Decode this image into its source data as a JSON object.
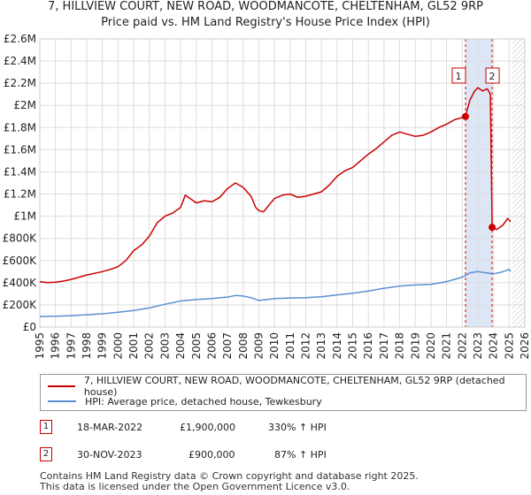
{
  "header": {
    "line1": "7, HILLVIEW COURT, NEW ROAD, WOODMANCOTE, CHELTENHAM, GL52 9RP",
    "line2": "Price paid vs. HM Land Registry's House Price Index (HPI)"
  },
  "chart_data": {
    "type": "line",
    "ylim": [
      0,
      2600000
    ],
    "xlim": [
      1995,
      2026
    ],
    "yticks": [
      {
        "value": 0,
        "label": "£0"
      },
      {
        "value": 200000,
        "label": "£200K"
      },
      {
        "value": 400000,
        "label": "£400K"
      },
      {
        "value": 600000,
        "label": "£600K"
      },
      {
        "value": 800000,
        "label": "£800K"
      },
      {
        "value": 1000000,
        "label": "£1M"
      },
      {
        "value": 1200000,
        "label": "£1.2M"
      },
      {
        "value": 1400000,
        "label": "£1.4M"
      },
      {
        "value": 1600000,
        "label": "£1.6M"
      },
      {
        "value": 1800000,
        "label": "£1.8M"
      },
      {
        "value": 2000000,
        "label": "£2M"
      },
      {
        "value": 2200000,
        "label": "£2.2M"
      },
      {
        "value": 2400000,
        "label": "£2.4M"
      },
      {
        "value": 2600000,
        "label": "£2.6M"
      }
    ],
    "xticks": [
      "1995",
      "1996",
      "1997",
      "1998",
      "1999",
      "2000",
      "2001",
      "2002",
      "2003",
      "2004",
      "2005",
      "2006",
      "2007",
      "2008",
      "2009",
      "2010",
      "2011",
      "2012",
      "2013",
      "2014",
      "2015",
      "2016",
      "2017",
      "2018",
      "2019",
      "2020",
      "2021",
      "2022",
      "2023",
      "2024",
      "2025",
      "2026"
    ],
    "series": [
      {
        "name": "7, HILLVIEW COURT, NEW ROAD, WOODMANCOTE, CHELTENHAM, GL52 9RP (detached house)",
        "color": "#cc0000",
        "points": [
          [
            1995.0,
            410000
          ],
          [
            1995.5,
            400000
          ],
          [
            1996.0,
            405000
          ],
          [
            1996.5,
            415000
          ],
          [
            1997.0,
            430000
          ],
          [
            1997.5,
            450000
          ],
          [
            1998.0,
            470000
          ],
          [
            1998.5,
            485000
          ],
          [
            1999.0,
            500000
          ],
          [
            1999.5,
            520000
          ],
          [
            2000.0,
            545000
          ],
          [
            2000.5,
            600000
          ],
          [
            2001.0,
            690000
          ],
          [
            2001.5,
            740000
          ],
          [
            2002.0,
            820000
          ],
          [
            2002.5,
            940000
          ],
          [
            2003.0,
            1000000
          ],
          [
            2003.5,
            1030000
          ],
          [
            2004.0,
            1080000
          ],
          [
            2004.3,
            1190000
          ],
          [
            2004.7,
            1150000
          ],
          [
            2005.0,
            1120000
          ],
          [
            2005.5,
            1140000
          ],
          [
            2006.0,
            1130000
          ],
          [
            2006.5,
            1170000
          ],
          [
            2007.0,
            1250000
          ],
          [
            2007.5,
            1300000
          ],
          [
            2008.0,
            1260000
          ],
          [
            2008.5,
            1180000
          ],
          [
            2008.8,
            1080000
          ],
          [
            2009.0,
            1050000
          ],
          [
            2009.3,
            1040000
          ],
          [
            2009.7,
            1110000
          ],
          [
            2010.0,
            1160000
          ],
          [
            2010.5,
            1190000
          ],
          [
            2011.0,
            1200000
          ],
          [
            2011.5,
            1170000
          ],
          [
            2012.0,
            1180000
          ],
          [
            2012.5,
            1200000
          ],
          [
            2013.0,
            1220000
          ],
          [
            2013.5,
            1280000
          ],
          [
            2014.0,
            1360000
          ],
          [
            2014.5,
            1410000
          ],
          [
            2015.0,
            1440000
          ],
          [
            2015.5,
            1500000
          ],
          [
            2016.0,
            1560000
          ],
          [
            2016.5,
            1610000
          ],
          [
            2017.0,
            1670000
          ],
          [
            2017.5,
            1730000
          ],
          [
            2018.0,
            1760000
          ],
          [
            2018.5,
            1740000
          ],
          [
            2019.0,
            1720000
          ],
          [
            2019.5,
            1730000
          ],
          [
            2020.0,
            1760000
          ],
          [
            2020.5,
            1800000
          ],
          [
            2021.0,
            1830000
          ],
          [
            2021.5,
            1870000
          ],
          [
            2022.0,
            1890000
          ],
          [
            2022.2,
            1900000
          ],
          [
            2022.5,
            2050000
          ],
          [
            2022.8,
            2130000
          ],
          [
            2023.0,
            2160000
          ],
          [
            2023.3,
            2130000
          ],
          [
            2023.6,
            2150000
          ],
          [
            2023.8,
            2100000
          ],
          [
            2023.91,
            900000
          ],
          [
            2024.2,
            880000
          ],
          [
            2024.6,
            920000
          ],
          [
            2024.9,
            980000
          ],
          [
            2025.1,
            950000
          ]
        ]
      },
      {
        "name": "HPI: Average price, detached house, Tewkesbury",
        "color": "#5b8fd4",
        "points": [
          [
            1995.0,
            95000
          ],
          [
            1996.0,
            97000
          ],
          [
            1997.0,
            103000
          ],
          [
            1998.0,
            111000
          ],
          [
            1999.0,
            120000
          ],
          [
            2000.0,
            133000
          ],
          [
            2001.0,
            150000
          ],
          [
            2002.0,
            172000
          ],
          [
            2003.0,
            206000
          ],
          [
            2004.0,
            235000
          ],
          [
            2005.0,
            248000
          ],
          [
            2006.0,
            258000
          ],
          [
            2007.0,
            270000
          ],
          [
            2007.5,
            285000
          ],
          [
            2008.0,
            280000
          ],
          [
            2008.5,
            265000
          ],
          [
            2009.0,
            240000
          ],
          [
            2009.5,
            248000
          ],
          [
            2010.0,
            258000
          ],
          [
            2011.0,
            262000
          ],
          [
            2012.0,
            265000
          ],
          [
            2013.0,
            273000
          ],
          [
            2014.0,
            290000
          ],
          [
            2015.0,
            305000
          ],
          [
            2016.0,
            325000
          ],
          [
            2017.0,
            350000
          ],
          [
            2018.0,
            370000
          ],
          [
            2019.0,
            380000
          ],
          [
            2020.0,
            385000
          ],
          [
            2021.0,
            410000
          ],
          [
            2021.5,
            430000
          ],
          [
            2022.0,
            450000
          ],
          [
            2022.5,
            490000
          ],
          [
            2023.0,
            500000
          ],
          [
            2023.5,
            490000
          ],
          [
            2024.0,
            480000
          ],
          [
            2024.5,
            495000
          ],
          [
            2025.0,
            520000
          ],
          [
            2025.1,
            500000
          ]
        ]
      }
    ],
    "sales": [
      {
        "label": "1",
        "x": 2022.21,
        "y": 1900000
      },
      {
        "label": "2",
        "x": 2023.91,
        "y": 900000
      }
    ],
    "shaded_period": [
      2022.21,
      2023.91
    ],
    "hatched_from": 2025.2
  },
  "legend": {
    "line1": "7, HILLVIEW COURT, NEW ROAD, WOODMANCOTE, CHELTENHAM, GL52 9RP (detached house)",
    "line2": "HPI: Average price, detached house, Tewkesbury"
  },
  "sales_table": [
    {
      "num": "1",
      "date": "18-MAR-2022",
      "price": "£1,900,000",
      "hpi": "330% ↑ HPI"
    },
    {
      "num": "2",
      "date": "30-NOV-2023",
      "price": "£900,000",
      "hpi": "87% ↑ HPI"
    }
  ],
  "footer": {
    "line1": "Contains HM Land Registry data © Crown copyright and database right 2025.",
    "line2": "This data is licensed under the Open Government Licence v3.0."
  },
  "colors": {
    "property": "#cc0000",
    "hpi": "#5b8fd4",
    "shade": "#dde6f5",
    "grid": "#dddddd"
  }
}
